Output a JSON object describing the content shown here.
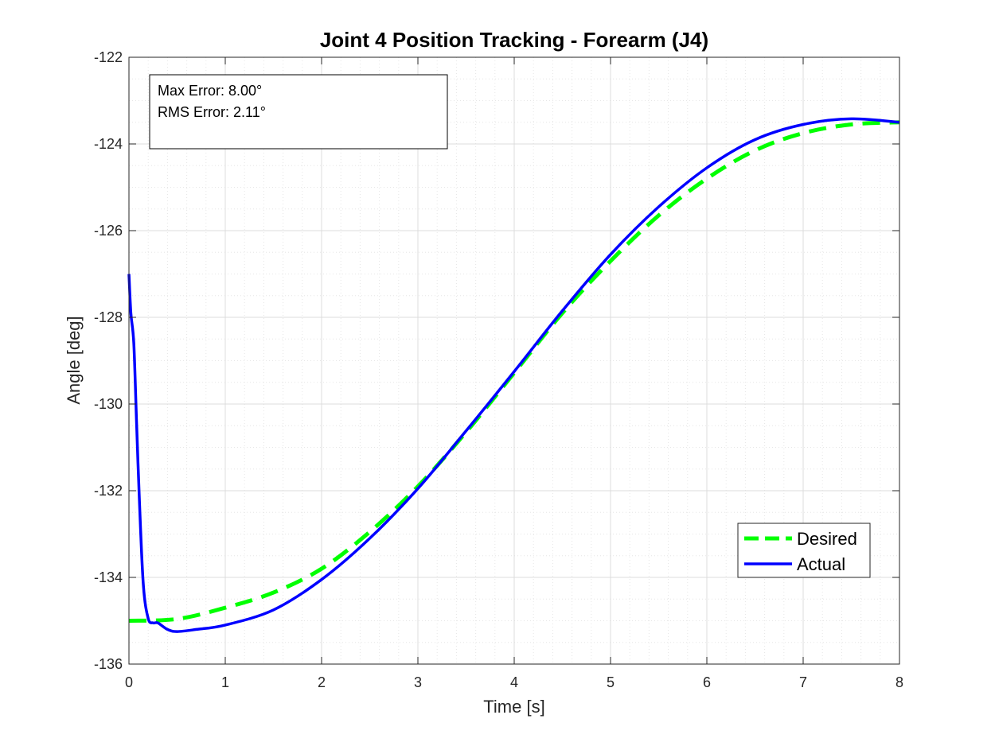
{
  "chart_data": {
    "type": "line",
    "title": "Joint 4 Position Tracking - Forearm (J4)",
    "xlabel": "Time [s]",
    "ylabel": "Angle [deg]",
    "xlim": [
      0,
      8
    ],
    "ylim": [
      -136,
      -122
    ],
    "xticks": [
      0,
      1,
      2,
      3,
      4,
      5,
      6,
      7,
      8
    ],
    "yticks": [
      -122,
      -124,
      -126,
      -128,
      -130,
      -132,
      -134,
      -136
    ],
    "xtick_labels": [
      "0",
      "1",
      "2",
      "3",
      "4",
      "5",
      "6",
      "7",
      "8"
    ],
    "ytick_labels": [
      "-122",
      "-124",
      "-126",
      "-128",
      "-130",
      "-132",
      "-134",
      "-136"
    ],
    "grid": true,
    "minor_grid": true,
    "legend_position": "bottom-right",
    "annotation_lines": [
      "Max Error: 8.00°",
      "RMS Error: 2.11°"
    ],
    "series": [
      {
        "name": "Desired",
        "style": "dashed",
        "color": "#00ff00",
        "x": [
          0,
          0.5,
          1,
          1.5,
          2,
          2.5,
          3,
          3.5,
          4,
          4.5,
          5,
          5.5,
          6,
          6.5,
          7,
          7.5,
          8
        ],
        "y": [
          -135.0,
          -134.96,
          -134.7,
          -134.35,
          -133.8,
          -132.95,
          -131.9,
          -130.65,
          -129.28,
          -127.9,
          -126.7,
          -125.65,
          -124.8,
          -124.15,
          -123.75,
          -123.55,
          -123.5
        ]
      },
      {
        "name": "Actual",
        "style": "solid",
        "color": "#0000ff",
        "x": [
          0,
          0.02,
          0.05,
          0.08,
          0.11,
          0.15,
          0.2,
          0.25,
          0.3,
          0.4,
          0.5,
          0.7,
          1,
          1.5,
          2,
          2.5,
          3,
          3.5,
          4,
          4.5,
          5,
          5.5,
          6,
          6.5,
          7,
          7.5,
          8
        ],
        "y": [
          -127.0,
          -127.9,
          -128.6,
          -130.5,
          -132.3,
          -134.2,
          -134.95,
          -135.05,
          -135.05,
          -135.2,
          -135.25,
          -135.2,
          -135.1,
          -134.75,
          -134.05,
          -133.1,
          -131.95,
          -130.62,
          -129.25,
          -127.85,
          -126.55,
          -125.45,
          -124.55,
          -123.9,
          -123.55,
          -123.42,
          -123.5
        ]
      }
    ]
  }
}
